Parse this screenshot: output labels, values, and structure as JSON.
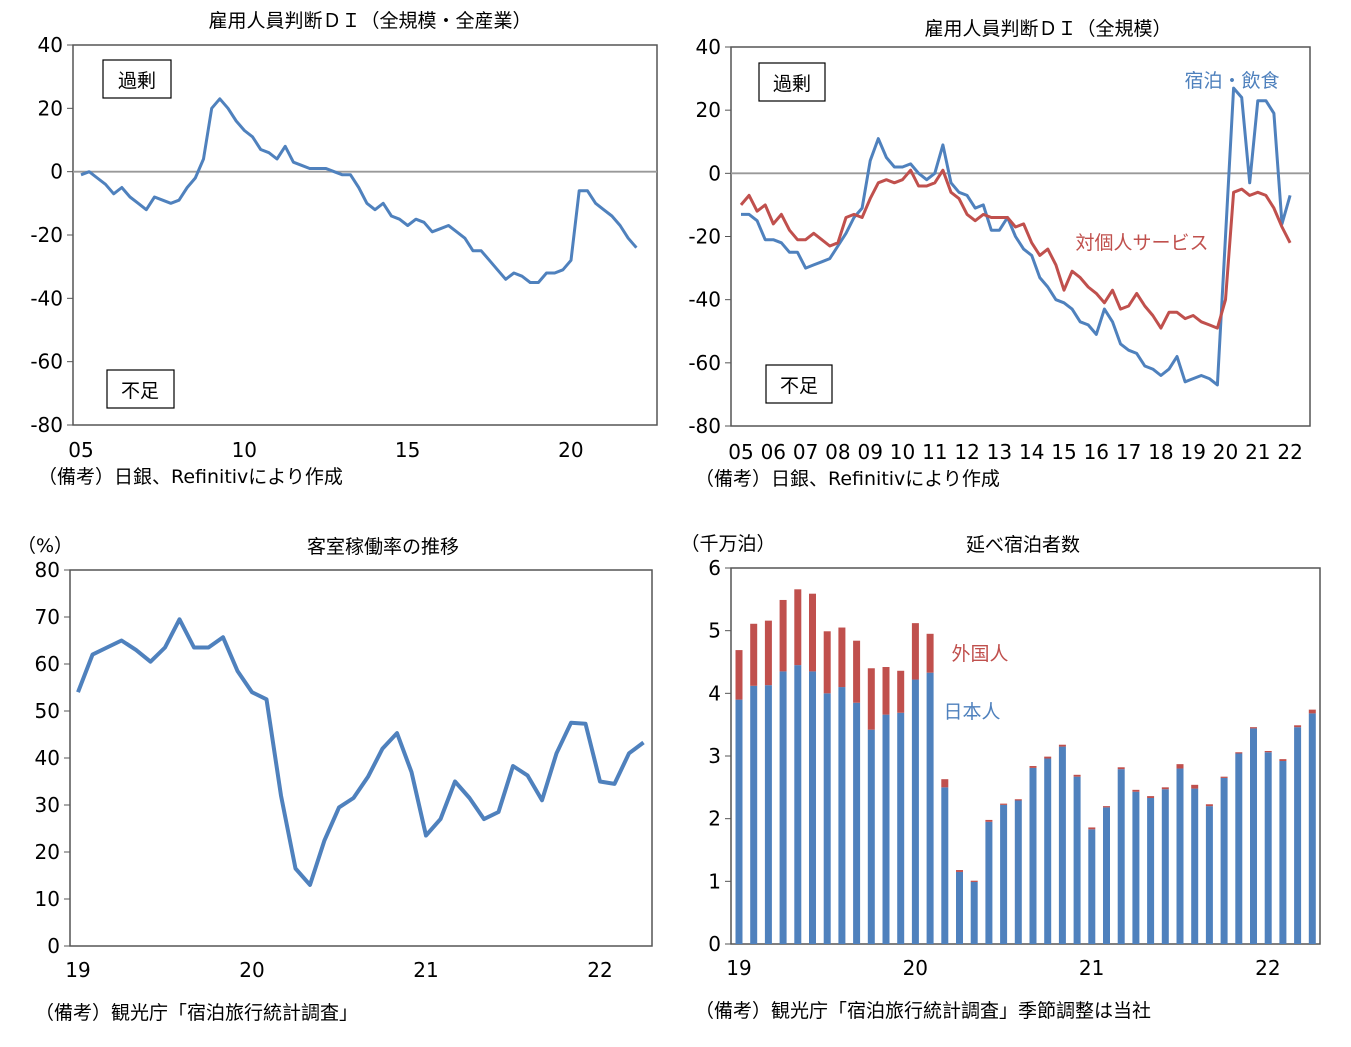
{
  "colors": {
    "blue": "#4f81bd",
    "red": "#c0504d",
    "zero_line": "#999999"
  },
  "chart_data": [
    {
      "type": "line",
      "title": "雇用人員判断ＤＩ（全規模・全産業）",
      "ylim": [
        -80,
        40
      ],
      "yticks": [
        "40",
        "20",
        "0",
        "-20",
        "-40",
        "-60",
        "-80"
      ],
      "xticks": [
        "05",
        "10",
        "15",
        "20"
      ],
      "x_start": "2005Q1",
      "frequency": "quarterly",
      "annotations": {
        "upper": "過剰",
        "lower": "不足"
      },
      "note": "（備考）日銀、Refinitivにより作成",
      "series": [
        {
          "color": "#4f81bd",
          "values": [
            -1,
            0,
            -2,
            -4,
            -7,
            -5,
            -8,
            -10,
            -12,
            -8,
            -9,
            -10,
            -9,
            -5,
            -2,
            4,
            20,
            23,
            20,
            16,
            13,
            11,
            7,
            6,
            4,
            8,
            3,
            2,
            1,
            1,
            1,
            0,
            -1,
            -1,
            -5,
            -10,
            -12,
            -10,
            -14,
            -15,
            -17,
            -15,
            -16,
            -19,
            -18,
            -17,
            -19,
            -21,
            -25,
            -25,
            -28,
            -31,
            -34,
            -32,
            -33,
            -35,
            -35,
            -32,
            -32,
            -31,
            -28,
            -6,
            -6,
            -10,
            -12,
            -14,
            -17,
            -21,
            -24
          ]
        }
      ]
    },
    {
      "type": "line",
      "title": "雇用人員判断ＤＩ（全規模）",
      "ylim": [
        -80,
        40
      ],
      "yticks": [
        "40",
        "20",
        "0",
        "-20",
        "-40",
        "-60",
        "-80"
      ],
      "xticks": [
        "05",
        "06",
        "07",
        "08",
        "09",
        "10",
        "11",
        "12",
        "13",
        "14",
        "15",
        "16",
        "17",
        "18",
        "19",
        "20",
        "21",
        "22"
      ],
      "x_start": "2005Q1",
      "frequency": "quarterly",
      "annotations": {
        "upper": "過剰",
        "lower": "不足"
      },
      "note": "（備考）日銀、Refinitivにより作成",
      "series": [
        {
          "name": "宿泊・飲食",
          "color": "#4f81bd",
          "values": [
            -13,
            -13,
            -15,
            -21,
            -21,
            -22,
            -25,
            -25,
            -30,
            -29,
            -28,
            -27,
            -23,
            -19,
            -14,
            -11,
            4,
            11,
            5,
            2,
            2,
            3,
            0,
            -2,
            0,
            9,
            -3,
            -6,
            -7,
            -11,
            -10,
            -18,
            -18,
            -14,
            -20,
            -24,
            -26,
            -33,
            -36,
            -40,
            -41,
            -43,
            -47,
            -48,
            -51,
            -43,
            -47,
            -54,
            -56,
            -57,
            -61,
            -62,
            -64,
            -62,
            -58,
            -66,
            -65,
            -64,
            -65,
            -67,
            -20,
            27,
            24,
            -3,
            23,
            23,
            19,
            -16,
            -7
          ]
        },
        {
          "name": "対個人サービス",
          "color": "#c0504d",
          "values": [
            -10,
            -7,
            -12,
            -10,
            -16,
            -13,
            -18,
            -21,
            -21,
            -19,
            -21,
            -23,
            -22,
            -14,
            -13,
            -14,
            -8,
            -3,
            -2,
            -3,
            -2,
            1,
            -4,
            -4,
            -3,
            1,
            -6,
            -8,
            -13,
            -15,
            -13,
            -14,
            -14,
            -14,
            -17,
            -16,
            -22,
            -26,
            -24,
            -29,
            -37,
            -31,
            -33,
            -36,
            -38,
            -41,
            -37,
            -43,
            -42,
            -38,
            -42,
            -45,
            -49,
            -44,
            -44,
            -46,
            -45,
            -47,
            -48,
            -49,
            -40,
            -6,
            -5,
            -7,
            -6,
            -7,
            -11,
            -17,
            -22
          ]
        }
      ]
    },
    {
      "type": "line",
      "title": "客室稼働率の推移",
      "unit": "（%）",
      "ylim": [
        0,
        80
      ],
      "yticks": [
        "80",
        "70",
        "60",
        "50",
        "40",
        "30",
        "20",
        "10",
        "0"
      ],
      "xticks": [
        "19",
        "20",
        "21",
        "22"
      ],
      "x_start": "2019-01",
      "frequency": "monthly",
      "note": "（備考）観光庁「宿泊旅行統計調査」",
      "series": [
        {
          "color": "#4f81bd",
          "values": [
            54,
            62,
            63.5,
            65,
            63,
            60.5,
            63.5,
            69.5,
            63.5,
            63.5,
            65.7,
            58.5,
            54,
            52.5,
            32,
            16.5,
            13,
            22.5,
            29.5,
            31.5,
            36,
            42,
            45.3,
            37,
            23.5,
            27,
            35,
            31.5,
            27,
            28.5,
            38.3,
            36.3,
            31,
            41,
            47.5,
            47.3,
            35,
            34.5,
            41,
            43.3
          ]
        }
      ]
    },
    {
      "type": "bar",
      "stacked": true,
      "title": "延べ宿泊者数",
      "unit": "（千万泊）",
      "ylim": [
        0,
        6
      ],
      "yticks": [
        "6",
        "5",
        "4",
        "3",
        "2",
        "1",
        "0"
      ],
      "xticks": [
        "19",
        "20",
        "21",
        "22"
      ],
      "x_start": "2019-01",
      "frequency": "monthly",
      "note": "（備考）観光庁「宿泊旅行統計調査」季節調整は当社",
      "series": [
        {
          "name": "日本人",
          "color": "#4f81bd",
          "values": [
            3.9,
            4.12,
            4.13,
            4.35,
            4.45,
            4.35,
            4.0,
            4.1,
            3.85,
            3.42,
            3.66,
            3.69,
            4.22,
            4.33,
            2.5,
            1.15,
            0.99,
            1.95,
            2.22,
            2.29,
            2.81,
            2.96,
            3.15,
            2.67,
            1.83,
            2.18,
            2.79,
            2.43,
            2.33,
            2.47,
            2.8,
            2.48,
            2.2,
            2.65,
            3.04,
            3.44,
            3.06,
            2.92,
            3.46,
            3.68
          ]
        },
        {
          "name": "外国人",
          "color": "#c0504d",
          "values": [
            0.79,
            0.99,
            1.03,
            1.14,
            1.21,
            1.24,
            0.99,
            0.95,
            0.99,
            0.98,
            0.76,
            0.67,
            0.9,
            0.62,
            0.13,
            0.03,
            0.02,
            0.03,
            0.02,
            0.02,
            0.03,
            0.03,
            0.03,
            0.03,
            0.03,
            0.02,
            0.03,
            0.03,
            0.03,
            0.03,
            0.07,
            0.06,
            0.03,
            0.02,
            0.02,
            0.02,
            0.02,
            0.03,
            0.03,
            0.06
          ]
        }
      ]
    }
  ]
}
